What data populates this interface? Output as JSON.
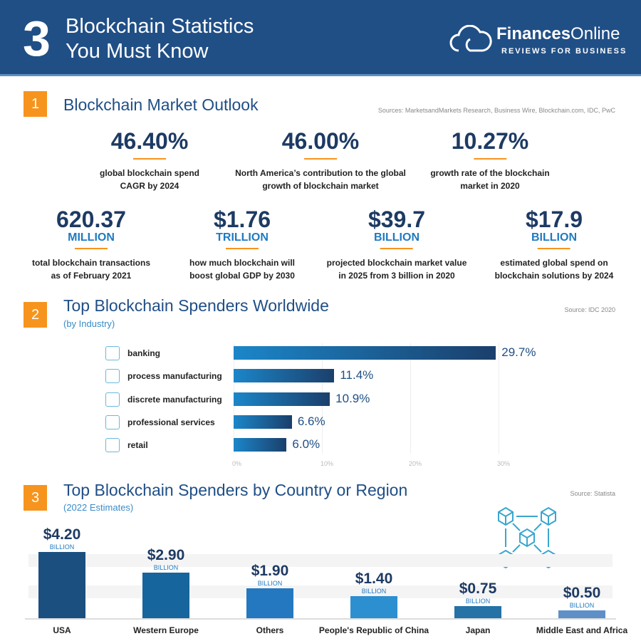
{
  "header": {
    "number": "3",
    "title_line1": "Blockchain Statistics",
    "title_line2": "You Must Know",
    "brand_bold": "Finances",
    "brand_light": "Online",
    "tagline": "REVIEWS FOR BUSINESS"
  },
  "section1": {
    "badge": "1",
    "title": "Blockchain Market Outlook",
    "source": "Sources: MarketsandMarkets Research, Business Wire, Blockchain.com, IDC, PwC",
    "stats": [
      {
        "value": "46.40%",
        "unit": "",
        "desc1": "global blockchain spend",
        "desc2": "CAGR by 2024"
      },
      {
        "value": "46.00%",
        "unit": "",
        "desc1": "North America’s contribution to the global",
        "desc2": "growth of blockchain market"
      },
      {
        "value": "10.27%",
        "unit": "",
        "desc1": "growth rate of the blockchain",
        "desc2": "market in 2020"
      },
      {
        "value": "620.37",
        "unit": "MILLION",
        "desc1": "total blockchain transactions",
        "desc2": "as of February 2021"
      },
      {
        "value": "$1.76",
        "unit": "TRILLION",
        "desc1": "how much blockchain will",
        "desc2": "boost global GDP by 2030"
      },
      {
        "value": "$39.7",
        "unit": "BILLION",
        "desc1": "projected blockchain market value",
        "desc2": "in 2025 from 3 billion in 2020"
      },
      {
        "value": "$17.9",
        "unit": "BILLION",
        "desc1": "estimated global spend on",
        "desc2": "blockchain solutions by 2024"
      }
    ]
  },
  "section2": {
    "badge": "2",
    "title": "Top Blockchain Spenders Worldwide",
    "subtitle": "(by Industry)",
    "source": "Source: IDC 2020"
  },
  "section3": {
    "badge": "3",
    "title": "Top Blockchain Spenders by Country or Region",
    "subtitle": "(2022 Estimates)",
    "source": "Source:  Statista"
  },
  "chart_data": [
    {
      "type": "bar",
      "orientation": "horizontal",
      "categories": [
        "banking",
        "process manufacturing",
        "discrete manufacturing",
        "professional services",
        "retail"
      ],
      "icons": [
        "bank-icon",
        "factory-icon",
        "robot-arm-icon",
        "gears-icon",
        "monitor-icon"
      ],
      "values": [
        29.7,
        11.4,
        10.9,
        6.6,
        6.0
      ],
      "labels": [
        "29.7%",
        "11.4%",
        "10.9%",
        "6.6%",
        "6.0%"
      ],
      "xlim": [
        0,
        30
      ],
      "ticks": [
        "0%",
        "10%",
        "20%",
        "30%"
      ],
      "grid": true
    },
    {
      "type": "bar",
      "categories": [
        "USA",
        "Western Europe",
        "Others",
        "People's Republic of China",
        "Japan",
        "Middle East and Africa"
      ],
      "values": [
        4.2,
        2.9,
        1.9,
        1.4,
        0.75,
        0.5
      ],
      "labels": [
        "$4.20",
        "$2.90",
        "$1.90",
        "$1.40",
        "$0.75",
        "$0.50"
      ],
      "unit_label": "BILLION",
      "colors": [
        "#1b4f80",
        "#16659c",
        "#2378c0",
        "#2c8fd0",
        "#2472a6",
        "#5f8fc7"
      ]
    }
  ]
}
